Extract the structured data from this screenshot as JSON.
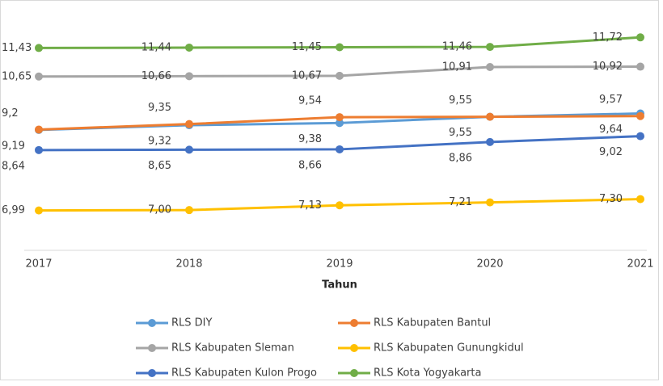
{
  "chart_data": {
    "type": "line",
    "x_label": "Tahun",
    "categories": [
      "2017",
      "2018",
      "2019",
      "2020",
      "2021"
    ],
    "ylim": [
      5.9,
      12.3
    ],
    "legend": "bottom",
    "series": [
      {
        "name": "RLS DIY",
        "color": "#5b9bd5",
        "values": [
          9.19,
          9.32,
          9.38,
          9.55,
          9.64
        ],
        "value_labels": [
          "9,19",
          "9,32",
          "9,38",
          "9,55",
          "9,64"
        ]
      },
      {
        "name": "RLS Kabupaten Bantul",
        "color": "#ed7d31",
        "values": [
          9.2,
          9.35,
          9.54,
          9.55,
          9.57
        ],
        "value_labels": [
          "9,2",
          "9,35",
          "9,54",
          "9,55",
          "9,57"
        ]
      },
      {
        "name": "RLS Kabupaten Sleman",
        "color": "#a5a5a5",
        "values": [
          10.65,
          10.66,
          10.67,
          10.91,
          10.92
        ],
        "value_labels": [
          "10,65",
          "10,66",
          "10,67",
          "10,91",
          "10,92"
        ]
      },
      {
        "name": "RLS Kabupaten Gunungkidul",
        "color": "#ffc000",
        "values": [
          6.99,
          7.0,
          7.13,
          7.21,
          7.3
        ],
        "value_labels": [
          "6,99",
          "7,00",
          "7,13",
          "7,21",
          "7,30"
        ]
      },
      {
        "name": "RLS Kabupaten Kulon Progo",
        "color": "#4472c4",
        "values": [
          8.64,
          8.65,
          8.66,
          8.86,
          9.02
        ],
        "value_labels": [
          "8,64",
          "8,65",
          "8,66",
          "8,86",
          "9,02"
        ]
      },
      {
        "name": "RLS Kota Yogyakarta",
        "color": "#70ad47",
        "values": [
          11.43,
          11.44,
          11.45,
          11.46,
          11.72
        ],
        "value_labels": [
          "11,43",
          "11,44",
          "11,45",
          "11,46",
          "11,72"
        ]
      }
    ]
  }
}
